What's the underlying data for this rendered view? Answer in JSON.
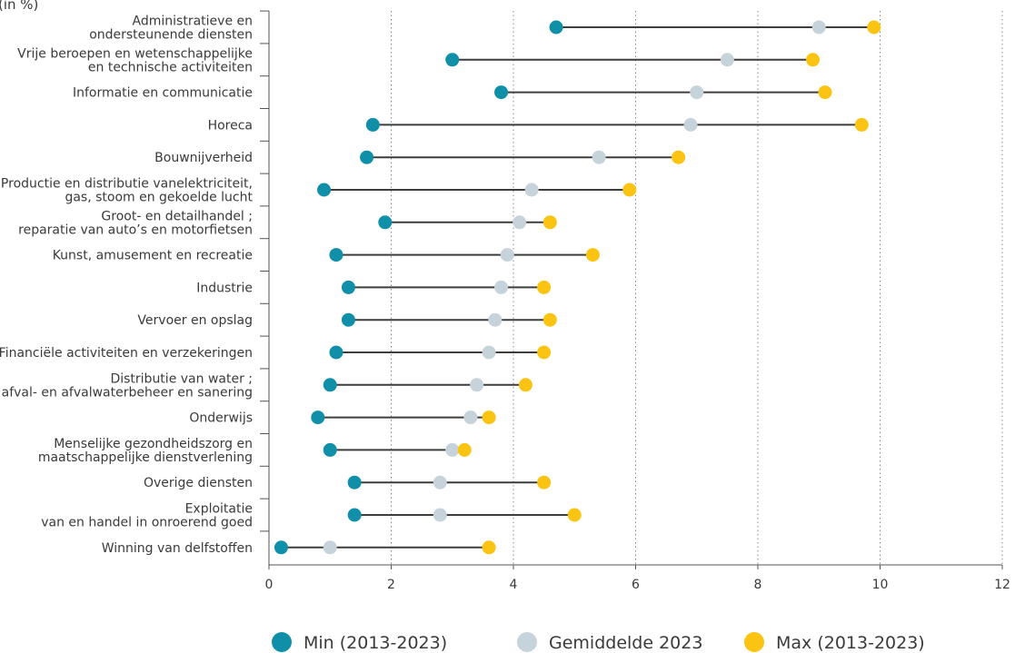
{
  "chart_data": {
    "type": "dumbbell",
    "ylabel": "(in %)",
    "xlim": [
      0,
      12
    ],
    "x_ticks": [
      "0",
      "2",
      "4",
      "6",
      "8",
      "10",
      "12"
    ],
    "grid": "vertical dotted",
    "colors": {
      "min": "#0f8fa8",
      "avg": "#c7d3da",
      "max": "#fbc413",
      "line": "#3d3d3d"
    },
    "legend": {
      "position": "bottom",
      "items": [
        {
          "key": "min",
          "label": "Min (2013-2023)"
        },
        {
          "key": "avg",
          "label": "Gemiddelde 2023"
        },
        {
          "key": "max",
          "label": "Max (2013-2023)"
        }
      ]
    },
    "categories": [
      {
        "label": [
          "Administratieve en",
          "ondersteunende diensten"
        ],
        "min": 4.7,
        "avg": 9.0,
        "max": 9.9
      },
      {
        "label": [
          "Vrije beroepen en wetenschappelijke",
          "en technische activiteiten"
        ],
        "min": 3.0,
        "avg": 7.5,
        "max": 8.9
      },
      {
        "label": [
          "Informatie en communicatie"
        ],
        "min": 3.8,
        "avg": 7.0,
        "max": 9.1
      },
      {
        "label": [
          "Horeca"
        ],
        "min": 1.7,
        "avg": 6.9,
        "max": 9.7
      },
      {
        "label": [
          "Bouwnijverheid"
        ],
        "min": 1.6,
        "avg": 5.4,
        "max": 6.7
      },
      {
        "label": [
          "Productie en distributie vanelektriciteit,",
          "gas, stoom en gekoelde lucht"
        ],
        "min": 0.9,
        "avg": 4.3,
        "max": 5.9
      },
      {
        "label": [
          "Groot- en detailhandel ;",
          "reparatie van auto’s en motorfietsen"
        ],
        "min": 1.9,
        "avg": 4.1,
        "max": 4.6
      },
      {
        "label": [
          "Kunst, amusement en recreatie"
        ],
        "min": 1.1,
        "avg": 3.9,
        "max": 5.3
      },
      {
        "label": [
          "Industrie"
        ],
        "min": 1.3,
        "avg": 3.8,
        "max": 4.5
      },
      {
        "label": [
          "Vervoer en opslag"
        ],
        "min": 1.3,
        "avg": 3.7,
        "max": 4.6
      },
      {
        "label": [
          "Financiële activiteiten en verzekeringen"
        ],
        "min": 1.1,
        "avg": 3.6,
        "max": 4.5
      },
      {
        "label": [
          "Distributie van water ;",
          "afval- en afvalwaterbeheer en sanering"
        ],
        "min": 1.0,
        "avg": 3.4,
        "max": 4.2
      },
      {
        "label": [
          "Onderwijs"
        ],
        "min": 0.8,
        "avg": 3.3,
        "max": 3.6
      },
      {
        "label": [
          "Menselijke gezondheidszorg en",
          "maatschappelijke dienstverlening"
        ],
        "min": 1.0,
        "avg": 3.0,
        "max": 3.2
      },
      {
        "label": [
          "Overige diensten"
        ],
        "min": 1.4,
        "avg": 2.8,
        "max": 4.5
      },
      {
        "label": [
          "Exploitatie",
          "van en handel in onroerend goed"
        ],
        "min": 1.4,
        "avg": 2.8,
        "max": 5.0
      },
      {
        "label": [
          "Winning van delfstoffen"
        ],
        "min": 0.2,
        "avg": 1.0,
        "max": 3.6
      }
    ]
  }
}
